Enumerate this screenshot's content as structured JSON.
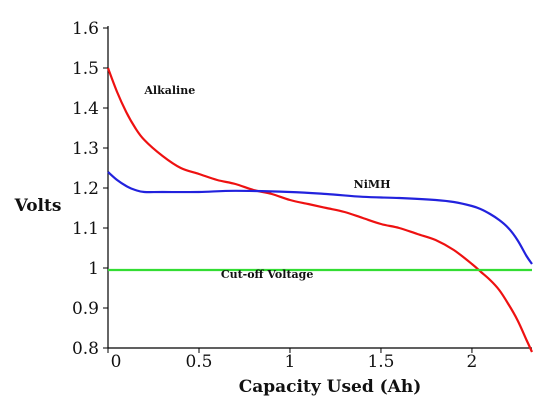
{
  "chart_data": {
    "type": "line",
    "title": "",
    "xlabel": "Capacity Used (Ah)",
    "ylabel": "Volts",
    "xlim": [
      0,
      2.33
    ],
    "ylim": [
      0.8,
      1.6
    ],
    "x_ticks": [
      {
        "value": 0,
        "label": "0"
      },
      {
        "value": 0.5,
        "label": "0.5"
      },
      {
        "value": 1,
        "label": "1"
      },
      {
        "value": 1.5,
        "label": "1.5"
      },
      {
        "value": 2,
        "label": "2"
      }
    ],
    "y_ticks": [
      {
        "value": 0.8,
        "label": "0.8"
      },
      {
        "value": 0.9,
        "label": "0.9"
      },
      {
        "value": 1.0,
        "label": "1"
      },
      {
        "value": 1.1,
        "label": "1.1"
      },
      {
        "value": 1.2,
        "label": "1.2"
      },
      {
        "value": 1.3,
        "label": "1.3"
      },
      {
        "value": 1.4,
        "label": "1.4"
      },
      {
        "value": 1.5,
        "label": "1.5"
      },
      {
        "value": 1.6,
        "label": "1.6"
      }
    ],
    "grid": false,
    "legend": "none",
    "series": [
      {
        "name": "Alkaline",
        "color": "#ee1111",
        "x": [
          0,
          0.05,
          0.1,
          0.15,
          0.2,
          0.3,
          0.4,
          0.5,
          0.6,
          0.7,
          0.8,
          0.9,
          1.0,
          1.1,
          1.2,
          1.3,
          1.4,
          1.5,
          1.6,
          1.7,
          1.8,
          1.9,
          2.0,
          2.05,
          2.1,
          2.15,
          2.2,
          2.25,
          2.3,
          2.33
        ],
        "y": [
          1.5,
          1.44,
          1.39,
          1.35,
          1.32,
          1.28,
          1.25,
          1.235,
          1.22,
          1.21,
          1.195,
          1.185,
          1.17,
          1.16,
          1.15,
          1.14,
          1.125,
          1.11,
          1.1,
          1.085,
          1.07,
          1.045,
          1.01,
          0.99,
          0.97,
          0.945,
          0.91,
          0.87,
          0.82,
          0.79
        ]
      },
      {
        "name": "NiMH",
        "color": "#2222dd",
        "x": [
          0,
          0.05,
          0.1,
          0.15,
          0.2,
          0.3,
          0.5,
          0.7,
          1.0,
          1.2,
          1.4,
          1.6,
          1.8,
          1.9,
          2.0,
          2.05,
          2.1,
          2.15,
          2.2,
          2.25,
          2.3,
          2.33
        ],
        "y": [
          1.24,
          1.22,
          1.205,
          1.195,
          1.19,
          1.19,
          1.19,
          1.193,
          1.19,
          1.185,
          1.178,
          1.175,
          1.17,
          1.165,
          1.155,
          1.147,
          1.135,
          1.12,
          1.1,
          1.07,
          1.03,
          1.01
        ]
      },
      {
        "name": "Cut-off Voltage",
        "color": "#33dd33",
        "x": [
          0,
          2.33
        ],
        "y": [
          0.995,
          0.995
        ]
      }
    ],
    "annotations": [
      {
        "text": "Alkaline",
        "x": 0.2,
        "y": 1.435
      },
      {
        "text": "NiMH",
        "x": 1.35,
        "y": 1.2
      },
      {
        "text": "Cut-off Voltage",
        "x": 0.62,
        "y": 0.975
      }
    ]
  }
}
